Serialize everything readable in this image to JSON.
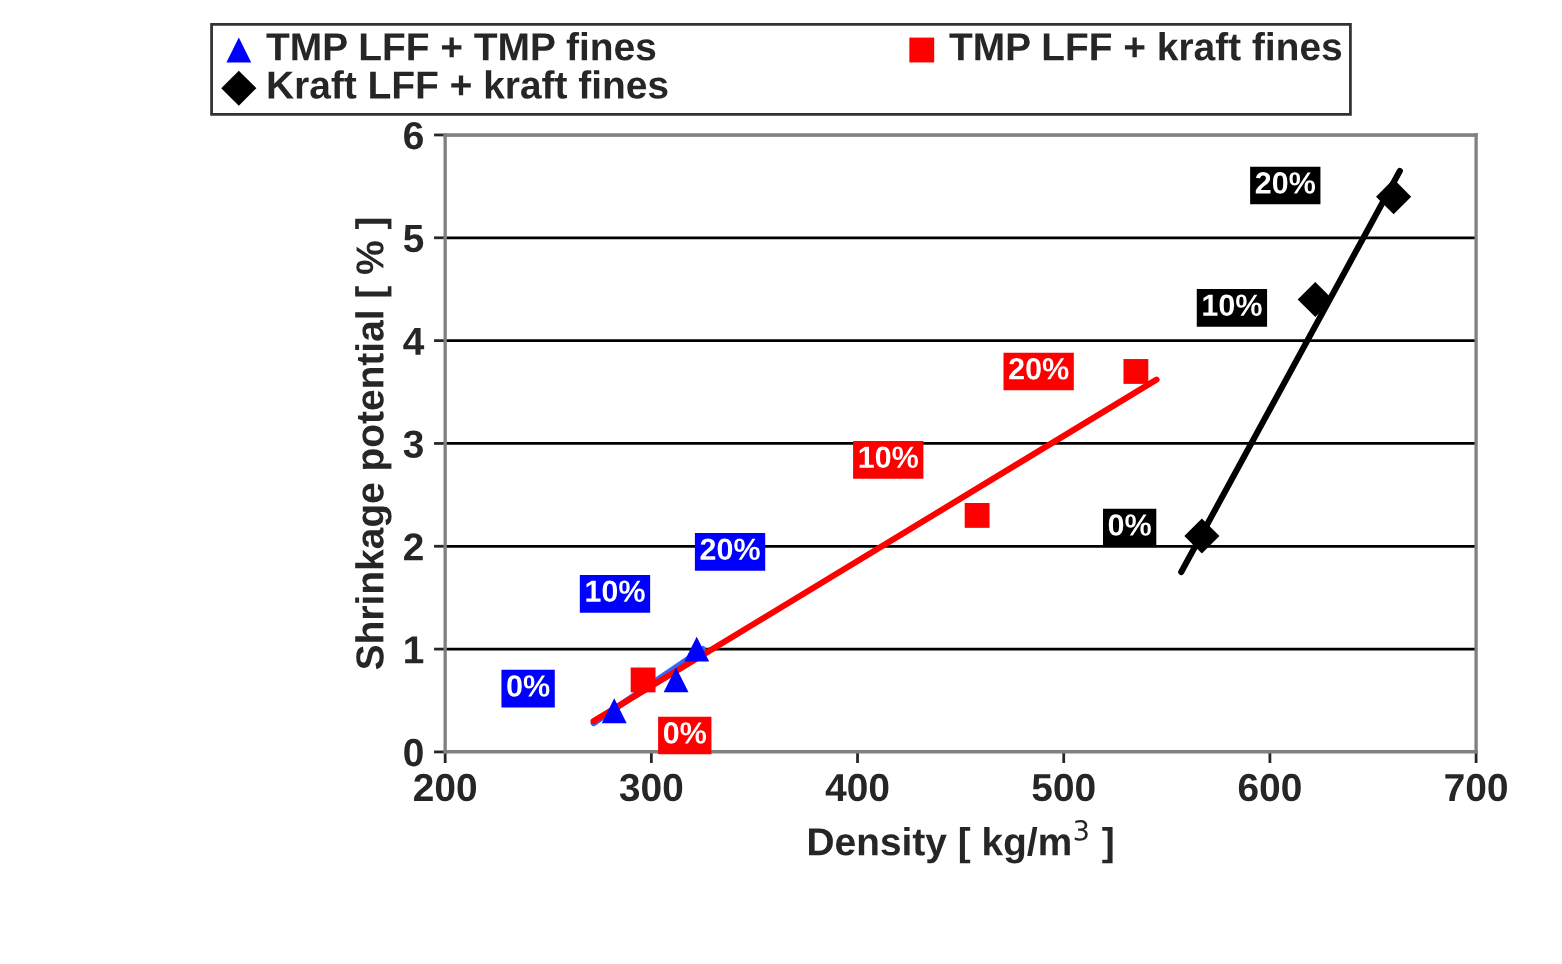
{
  "chart_data": {
    "type": "scatter",
    "xlabel": "Density [ kg/m$^{3}$ ]",
    "ylabel": "Shrinkage potential [ % ]",
    "xlim": [
      200,
      700
    ],
    "xticks": [
      200,
      300,
      400,
      500,
      600,
      700
    ],
    "ylim": [
      0,
      6
    ],
    "yticks": [
      0,
      1,
      2,
      3,
      4,
      5,
      6
    ],
    "grid": "y",
    "legend": "top",
    "series": [
      {
        "name": "TMP LFF + TMP fines",
        "color": "#0000ff",
        "marker": "triangle",
        "x": [
          282,
          312,
          322
        ],
        "values": [
          0.4,
          0.7,
          1.0
        ]
      },
      {
        "name": "Kraft LFF + kraft fines",
        "color": "#000000",
        "marker": "diamond",
        "x": [
          567,
          622,
          660
        ],
        "values": [
          2.1,
          4.4,
          5.4
        ]
      },
      {
        "name": "TMP LFF + kraft fines",
        "color": "#ff0000",
        "marker": "square",
        "x": [
          296,
          458,
          535
        ],
        "values": [
          0.7,
          2.3,
          3.7
        ]
      },
      {
        "type": "line",
        "color": "#3366ff",
        "x": [
          272,
          325
        ],
        "values": [
          0.28,
          1.0
        ]
      },
      {
        "type": "line",
        "color": "#ff0000",
        "x": [
          272,
          545
        ],
        "values": [
          0.3,
          3.62
        ]
      },
      {
        "type": "line",
        "color": "#000000",
        "x": [
          557,
          663
        ],
        "values": [
          1.75,
          5.65
        ]
      }
    ],
    "annotations": [
      {
        "text": "0%",
        "x": 282,
        "y": 0.4
      },
      {
        "text": "10%",
        "x": 312,
        "y": 0.7
      },
      {
        "text": "20%",
        "x": 322,
        "y": 1.0
      },
      {
        "text": "0%",
        "x": 567,
        "y": 2.1
      },
      {
        "text": "10%",
        "x": 622,
        "y": 4.4
      },
      {
        "text": "20%",
        "x": 660,
        "y": 5.4
      },
      {
        "text": "0%",
        "x": 296,
        "y": 0.7
      },
      {
        "text": "10%",
        "x": 458,
        "y": 2.3
      },
      {
        "text": "20%",
        "x": 535,
        "y": 3.7
      }
    ]
  }
}
